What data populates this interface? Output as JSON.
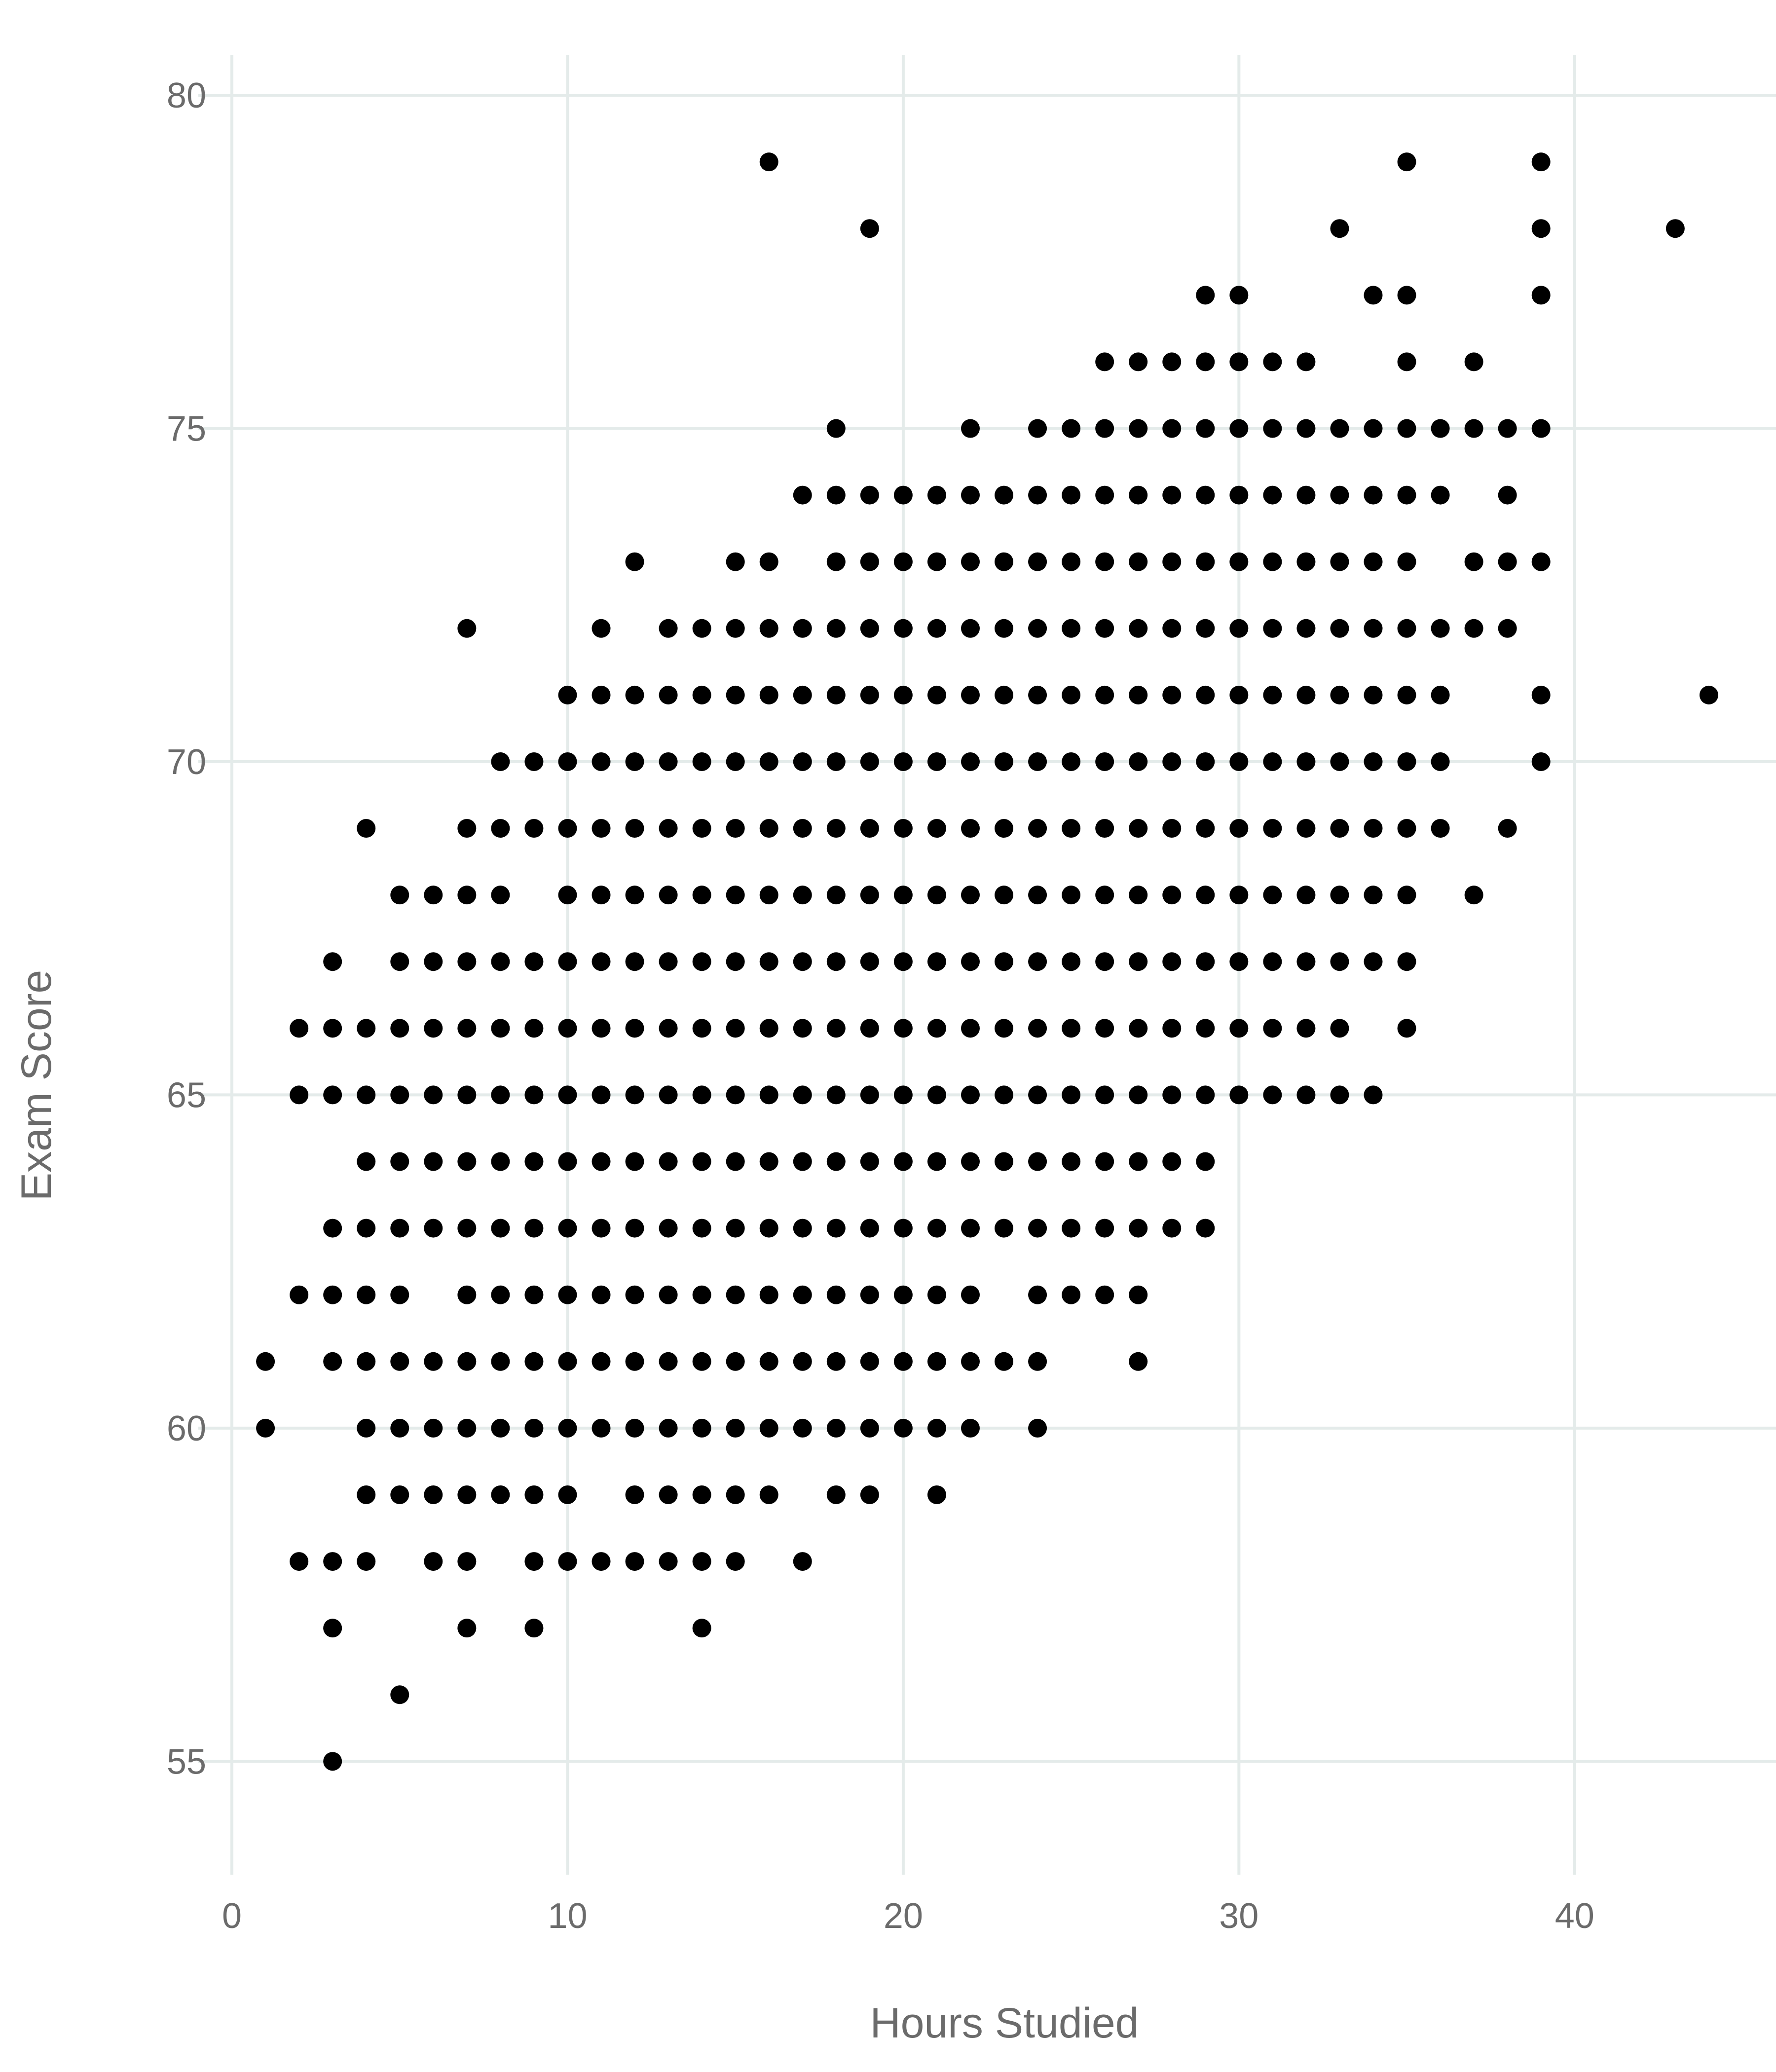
{
  "chart_data": {
    "type": "scatter",
    "title": "",
    "xlabel": "Hours Studied",
    "ylabel": "Exam Score",
    "xlim": [
      -1,
      46
    ],
    "ylim": [
      53.3,
      80.6
    ],
    "x_ticks": [
      0,
      10,
      20,
      30,
      40
    ],
    "y_ticks": [
      55,
      60,
      65,
      70,
      75,
      80
    ],
    "grid": true,
    "point_color": "#000000",
    "grid_color": "#e4ebea",
    "rows": [
      {
        "y": 79,
        "x": [
          16,
          35,
          39
        ]
      },
      {
        "y": 78,
        "x": [
          19,
          33,
          39,
          43
        ]
      },
      {
        "y": 77,
        "x": [
          29,
          30,
          34,
          35,
          39
        ]
      },
      {
        "y": 76,
        "x": [
          26,
          27,
          28,
          29,
          30,
          31,
          32,
          35,
          37
        ]
      },
      {
        "y": 75,
        "x": [
          18,
          22,
          24,
          25,
          26,
          27,
          28,
          29,
          30,
          31,
          32,
          33,
          34,
          35,
          36,
          37,
          38,
          39
        ]
      },
      {
        "y": 74,
        "x": [
          17,
          18,
          19,
          20,
          21,
          22,
          23,
          24,
          25,
          26,
          27,
          28,
          29,
          30,
          31,
          32,
          33,
          34,
          35,
          36,
          38
        ]
      },
      {
        "y": 73,
        "x": [
          12,
          15,
          16,
          18,
          19,
          20,
          21,
          22,
          23,
          24,
          25,
          26,
          27,
          28,
          29,
          30,
          31,
          32,
          33,
          34,
          35,
          37,
          38,
          39
        ]
      },
      {
        "y": 72,
        "x": [
          7,
          11,
          13,
          14,
          15,
          16,
          17,
          18,
          19,
          20,
          21,
          22,
          23,
          24,
          25,
          26,
          27,
          28,
          29,
          30,
          31,
          32,
          33,
          34,
          35,
          36,
          37,
          38
        ]
      },
      {
        "y": 71,
        "x": [
          10,
          11,
          12,
          13,
          14,
          15,
          16,
          17,
          18,
          19,
          20,
          21,
          22,
          23,
          24,
          25,
          26,
          27,
          28,
          29,
          30,
          31,
          32,
          33,
          34,
          35,
          36,
          39,
          44
        ]
      },
      {
        "y": 70,
        "x": [
          8,
          9,
          10,
          11,
          12,
          13,
          14,
          15,
          16,
          17,
          18,
          19,
          20,
          21,
          22,
          23,
          24,
          25,
          26,
          27,
          28,
          29,
          30,
          31,
          32,
          33,
          34,
          35,
          36,
          39
        ]
      },
      {
        "y": 69,
        "x": [
          4,
          7,
          8,
          9,
          10,
          11,
          12,
          13,
          14,
          15,
          16,
          17,
          18,
          19,
          20,
          21,
          22,
          23,
          24,
          25,
          26,
          27,
          28,
          29,
          30,
          31,
          32,
          33,
          34,
          35,
          36,
          38
        ]
      },
      {
        "y": 68,
        "x": [
          5,
          6,
          7,
          8,
          10,
          11,
          12,
          13,
          14,
          15,
          16,
          17,
          18,
          19,
          20,
          21,
          22,
          23,
          24,
          25,
          26,
          27,
          28,
          29,
          30,
          31,
          32,
          33,
          34,
          35,
          37
        ]
      },
      {
        "y": 67,
        "x": [
          3,
          5,
          6,
          7,
          8,
          9,
          10,
          11,
          12,
          13,
          14,
          15,
          16,
          17,
          18,
          19,
          20,
          21,
          22,
          23,
          24,
          25,
          26,
          27,
          28,
          29,
          30,
          31,
          32,
          33,
          34,
          35
        ]
      },
      {
        "y": 66,
        "x": [
          2,
          3,
          4,
          5,
          6,
          7,
          8,
          9,
          10,
          11,
          12,
          13,
          14,
          15,
          16,
          17,
          18,
          19,
          20,
          21,
          22,
          23,
          24,
          25,
          26,
          27,
          28,
          29,
          30,
          31,
          32,
          33,
          35
        ]
      },
      {
        "y": 65,
        "x": [
          2,
          3,
          4,
          5,
          6,
          7,
          8,
          9,
          10,
          11,
          12,
          13,
          14,
          15,
          16,
          17,
          18,
          19,
          20,
          21,
          22,
          23,
          24,
          25,
          26,
          27,
          28,
          29,
          30,
          31,
          32,
          33,
          34
        ]
      },
      {
        "y": 64,
        "x": [
          4,
          5,
          6,
          7,
          8,
          9,
          10,
          11,
          12,
          13,
          14,
          15,
          16,
          17,
          18,
          19,
          20,
          21,
          22,
          23,
          24,
          25,
          26,
          27,
          28,
          29
        ]
      },
      {
        "y": 63,
        "x": [
          3,
          4,
          5,
          6,
          7,
          8,
          9,
          10,
          11,
          12,
          13,
          14,
          15,
          16,
          17,
          18,
          19,
          20,
          21,
          22,
          23,
          24,
          25,
          26,
          27,
          28,
          29
        ]
      },
      {
        "y": 62,
        "x": [
          2,
          3,
          4,
          5,
          7,
          8,
          9,
          10,
          11,
          12,
          13,
          14,
          15,
          16,
          17,
          18,
          19,
          20,
          21,
          22,
          24,
          25,
          26,
          27
        ]
      },
      {
        "y": 61,
        "x": [
          1,
          3,
          4,
          5,
          6,
          7,
          8,
          9,
          10,
          11,
          12,
          13,
          14,
          15,
          16,
          17,
          18,
          19,
          20,
          21,
          22,
          23,
          24,
          27
        ]
      },
      {
        "y": 60,
        "x": [
          1,
          4,
          5,
          6,
          7,
          8,
          9,
          10,
          11,
          12,
          13,
          14,
          15,
          16,
          17,
          18,
          19,
          20,
          21,
          22,
          24
        ]
      },
      {
        "y": 59,
        "x": [
          4,
          5,
          6,
          7,
          8,
          9,
          10,
          12,
          13,
          14,
          15,
          16,
          18,
          19,
          21
        ]
      },
      {
        "y": 58,
        "x": [
          2,
          3,
          4,
          6,
          7,
          9,
          10,
          11,
          12,
          13,
          14,
          15,
          17
        ]
      },
      {
        "y": 57,
        "x": [
          3,
          7,
          9,
          14
        ]
      },
      {
        "y": 56,
        "x": [
          5
        ]
      },
      {
        "y": 55,
        "x": [
          3
        ]
      }
    ]
  }
}
